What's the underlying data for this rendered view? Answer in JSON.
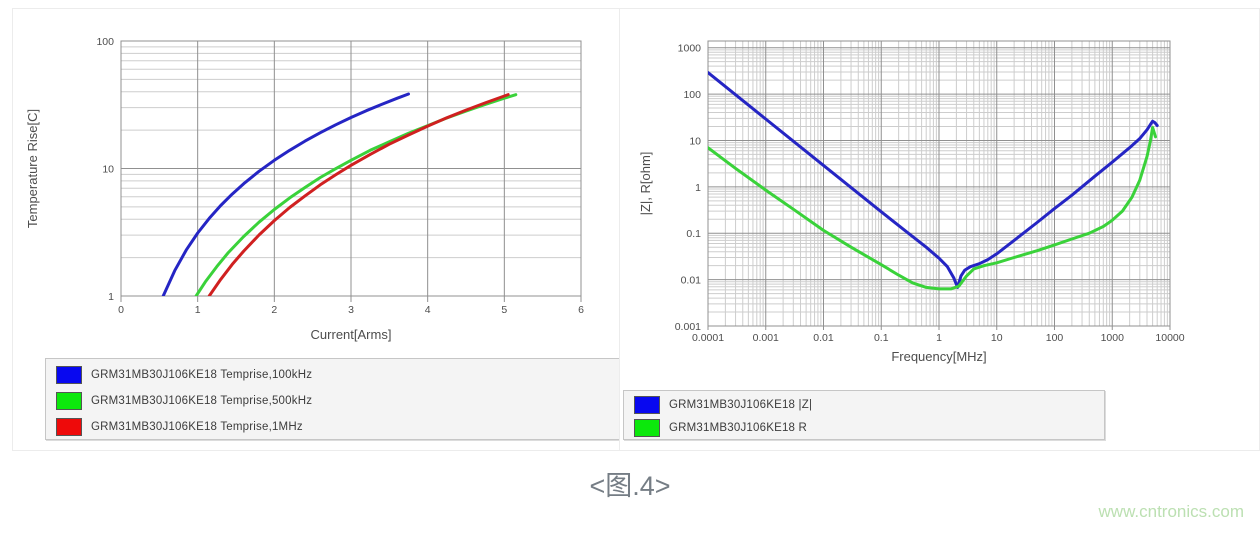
{
  "page": {
    "caption": "<图.4>",
    "watermark": "www.cntronics.com"
  },
  "colors": {
    "grid_major": "#909090",
    "grid_minor": "#cdcdcd",
    "axis_text": "#4d4d4d",
    "plot_bg": "#ffffff",
    "legend_bg": "#f4f4f4",
    "legend_border": "#c6c6c6",
    "caption_color": "#757d85",
    "watermark_color": "#bce0b2",
    "blue": "#2525c4",
    "green": "#3ad23a",
    "red": "#d02020"
  },
  "chart_data": [
    {
      "type": "line",
      "title": "",
      "xlabel": "Current[Arms]",
      "ylabel": "Temperature Rise[C]",
      "xscale": "linear",
      "yscale": "log",
      "xlim": [
        0,
        6
      ],
      "ylim": [
        1,
        100
      ],
      "xticks": [
        0,
        1,
        2,
        3,
        4,
        5,
        6
      ],
      "yticks": [
        1,
        10,
        100
      ],
      "grid": true,
      "legend_position": "below",
      "series": [
        {
          "id": "temprise-100khz",
          "name": "GRM31MB30J106KE18 Temprise,100kHz",
          "color": "#2525c4",
          "swatch": "#0808f0",
          "points": [
            [
              0.55,
              1
            ],
            [
              0.7,
              1.58
            ],
            [
              0.85,
              2.29
            ],
            [
              1.0,
              3.12
            ],
            [
              1.15,
              4.06
            ],
            [
              1.3,
              5.13
            ],
            [
              1.45,
              6.3
            ],
            [
              1.6,
              7.6
            ],
            [
              1.8,
              9.5
            ],
            [
              2.0,
              11.6
            ],
            [
              2.2,
              13.9
            ],
            [
              2.4,
              16.4
            ],
            [
              2.6,
              19.1
            ],
            [
              2.8,
              22
            ],
            [
              3.0,
              25.1
            ],
            [
              3.2,
              28.4
            ],
            [
              3.4,
              31.8
            ],
            [
              3.6,
              35.5
            ],
            [
              3.75,
              38.4
            ]
          ]
        },
        {
          "id": "temprise-500khz",
          "name": "GRM31MB30J106KE18 Temprise,500kHz",
          "color": "#3ad23a",
          "swatch": "#0ce80c",
          "points": [
            [
              0.98,
              1
            ],
            [
              1.1,
              1.29
            ],
            [
              1.25,
              1.7
            ],
            [
              1.4,
              2.19
            ],
            [
              1.6,
              2.93
            ],
            [
              1.8,
              3.79
            ],
            [
              2.0,
              4.77
            ],
            [
              2.2,
              5.88
            ],
            [
              2.4,
              7.1
            ],
            [
              2.6,
              8.5
            ],
            [
              2.8,
              9.97
            ],
            [
              3.0,
              11.6
            ],
            [
              3.25,
              13.9
            ],
            [
              3.5,
              16.2
            ],
            [
              3.75,
              18.9
            ],
            [
              4.0,
              21.7
            ],
            [
              4.25,
              24.9
            ],
            [
              4.5,
              28.2
            ],
            [
              4.75,
              31.8
            ],
            [
              5.0,
              35.6
            ],
            [
              5.15,
              37.9
            ]
          ]
        },
        {
          "id": "temprise-1mhz",
          "name": "GRM31MB30J106KE18 Temprise,1MHz",
          "color": "#d02020",
          "swatch": "#ee0a0a",
          "points": [
            [
              1.15,
              1
            ],
            [
              1.3,
              1.35
            ],
            [
              1.45,
              1.77
            ],
            [
              1.6,
              2.25
            ],
            [
              1.8,
              3.01
            ],
            [
              2.0,
              3.9
            ],
            [
              2.2,
              4.94
            ],
            [
              2.4,
              6.1
            ],
            [
              2.6,
              7.45
            ],
            [
              2.8,
              8.93
            ],
            [
              3.0,
              10.6
            ],
            [
              3.25,
              12.9
            ],
            [
              3.5,
              15.5
            ],
            [
              3.75,
              18.3
            ],
            [
              4.0,
              21.5
            ],
            [
              4.25,
              25
            ],
            [
              4.5,
              28.7
            ],
            [
              4.75,
              32.7
            ],
            [
              5.05,
              38
            ]
          ]
        }
      ]
    },
    {
      "type": "line",
      "title": "",
      "xlabel": "Frequency[MHz]",
      "ylabel": "|Z|, R[ohm]",
      "xscale": "log",
      "yscale": "log",
      "xlim": [
        0.0001,
        10000
      ],
      "ylim": [
        0.001,
        1000
      ],
      "xticks": [
        0.0001,
        0.001,
        0.01,
        0.1,
        1,
        10,
        100,
        1000,
        10000
      ],
      "yticks": [
        0.001,
        0.01,
        0.1,
        1,
        10,
        100,
        1000
      ],
      "grid": true,
      "legend_position": "below",
      "series": [
        {
          "id": "impedance-z",
          "name": "GRM31MB30J106KE18 |Z|",
          "color": "#2525c4",
          "swatch": "#0808f0",
          "points": [
            [
              0.0001,
              290
            ],
            [
              0.001,
              29
            ],
            [
              0.01,
              2.9
            ],
            [
              0.1,
              0.29
            ],
            [
              0.3,
              0.098
            ],
            [
              0.6,
              0.05
            ],
            [
              1,
              0.029
            ],
            [
              1.4,
              0.019
            ],
            [
              1.8,
              0.011
            ],
            [
              2.1,
              0.0068
            ],
            [
              2.4,
              0.012
            ],
            [
              2.8,
              0.016
            ],
            [
              3.5,
              0.019
            ],
            [
              5,
              0.022
            ],
            [
              7,
              0.027
            ],
            [
              10,
              0.036
            ],
            [
              20,
              0.07
            ],
            [
              50,
              0.17
            ],
            [
              100,
              0.34
            ],
            [
              200,
              0.66
            ],
            [
              500,
              1.7
            ],
            [
              1000,
              3.4
            ],
            [
              2000,
              7
            ],
            [
              3000,
              11
            ],
            [
              4000,
              17
            ],
            [
              5000,
              26
            ],
            [
              5500,
              24
            ],
            [
              6000,
              21
            ]
          ]
        },
        {
          "id": "resistance-r",
          "name": "GRM31MB30J106KE18 R",
          "color": "#3ad23a",
          "swatch": "#0ce80c",
          "points": [
            [
              0.0001,
              7
            ],
            [
              0.0003,
              2.5
            ],
            [
              0.001,
              0.85
            ],
            [
              0.003,
              0.33
            ],
            [
              0.01,
              0.115
            ],
            [
              0.03,
              0.05
            ],
            [
              0.1,
              0.021
            ],
            [
              0.2,
              0.0125
            ],
            [
              0.35,
              0.0085
            ],
            [
              0.6,
              0.0068
            ],
            [
              1,
              0.0063
            ],
            [
              1.6,
              0.0063
            ],
            [
              2.2,
              0.0072
            ],
            [
              3,
              0.012
            ],
            [
              4,
              0.017
            ],
            [
              6,
              0.02
            ],
            [
              10,
              0.023
            ],
            [
              20,
              0.03
            ],
            [
              50,
              0.042
            ],
            [
              100,
              0.056
            ],
            [
              200,
              0.075
            ],
            [
              400,
              0.1
            ],
            [
              700,
              0.14
            ],
            [
              1000,
              0.19
            ],
            [
              1500,
              0.3
            ],
            [
              2200,
              0.6
            ],
            [
              3000,
              1.4
            ],
            [
              4000,
              4.5
            ],
            [
              4600,
              10
            ],
            [
              5000,
              19
            ],
            [
              5300,
              15
            ],
            [
              5600,
              12
            ]
          ]
        }
      ]
    }
  ]
}
